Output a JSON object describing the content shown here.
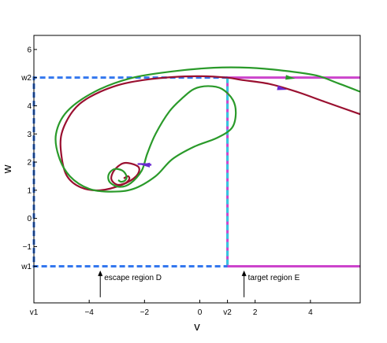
{
  "chart_data": {
    "type": "line",
    "xlabel": "v",
    "ylabel": "w",
    "xlim": [
      -6,
      5.8
    ],
    "ylim": [
      -3,
      6.5
    ],
    "v1": -6,
    "v2": 1,
    "w1": -1.7,
    "w2": 5,
    "x_ticks": [
      {
        "value": -6,
        "label": "v1"
      },
      {
        "value": -4,
        "label": "−4"
      },
      {
        "value": -2,
        "label": "−2"
      },
      {
        "value": 0,
        "label": "0"
      },
      {
        "value": 1,
        "label": "v2"
      },
      {
        "value": 2,
        "label": "2"
      },
      {
        "value": 4,
        "label": "4"
      }
    ],
    "y_ticks": [
      {
        "value": 6,
        "label": "6"
      },
      {
        "value": 5,
        "label": "w2"
      },
      {
        "value": 4,
        "label": "4"
      },
      {
        "value": 3,
        "label": "3"
      },
      {
        "value": 2,
        "label": "2"
      },
      {
        "value": 1,
        "label": "1"
      },
      {
        "value": 0,
        "label": "0"
      },
      {
        "value": -1,
        "label": "−1"
      },
      {
        "value": -1.7,
        "label": "w1"
      }
    ],
    "grid": false,
    "regions": [
      {
        "name": "escape region D",
        "color": "#3377ee",
        "style": "dashed"
      },
      {
        "name": "target region E",
        "color": "#cc44cc",
        "style": "solid"
      }
    ],
    "annotations": [
      {
        "text": "escape region D",
        "arrow_x": -3.6,
        "arrow_y_from": -2.8,
        "arrow_y_to": -1.85
      },
      {
        "text": "target region E",
        "arrow_x": 1.6,
        "arrow_y_from": -2.8,
        "arrow_y_to": -1.85
      }
    ],
    "series": [
      {
        "color": "#9a1030",
        "arrow_at": [
          2.9,
          4.62
        ],
        "x": [
          5.8,
          4.5,
          3.5,
          2.5,
          1.5,
          1.0,
          0.0,
          -1.0,
          -2.0,
          -3.0,
          -4.0,
          -4.6,
          -5.0,
          -5.0,
          -4.8,
          -4.3,
          -3.6,
          -2.8,
          -2.3,
          -2.2,
          -2.5,
          -2.8,
          -3.1,
          -3.2,
          -3.0,
          -2.7,
          -2.55,
          -2.6,
          -2.75
        ],
        "y": [
          3.7,
          4.15,
          4.5,
          4.78,
          4.92,
          5.0,
          5.05,
          5.02,
          4.92,
          4.72,
          4.3,
          3.8,
          3.0,
          2.2,
          1.5,
          1.1,
          1.0,
          1.2,
          1.5,
          1.8,
          1.95,
          1.95,
          1.7,
          1.4,
          1.2,
          1.25,
          1.4,
          1.5,
          1.42
        ]
      },
      {
        "color": "#2a9a2a",
        "arrow_at": [
          3.2,
          5.0
        ],
        "x": [
          5.8,
          5.0,
          4.2,
          3.0,
          1.8,
          0.5,
          -1.0,
          -2.5,
          -3.8,
          -4.8,
          -5.2,
          -5.1,
          -4.7,
          -4.0,
          -3.2,
          -2.4,
          -1.6,
          -1.0,
          -0.2,
          0.6,
          1.15,
          1.3,
          1.2,
          0.8,
          0.3,
          -0.2,
          -0.6,
          -1.1,
          -1.6,
          -1.9,
          -2.1,
          -2.5,
          -2.9,
          -3.25,
          -3.3,
          -3.1,
          -2.8,
          -2.65,
          -2.7,
          -2.85,
          -2.95
        ],
        "y": [
          4.5,
          4.8,
          5.08,
          5.25,
          5.35,
          5.35,
          5.22,
          4.98,
          4.5,
          3.8,
          3.0,
          2.2,
          1.5,
          1.05,
          0.95,
          1.05,
          1.5,
          2.1,
          2.55,
          2.85,
          3.2,
          3.7,
          4.2,
          4.6,
          4.7,
          4.6,
          4.3,
          3.8,
          3.0,
          2.3,
          1.7,
          1.25,
          1.12,
          1.28,
          1.55,
          1.75,
          1.7,
          1.5,
          1.35,
          1.3,
          1.36
        ]
      },
      {
        "color": "#6a2ad0",
        "arrow_at": [
          -1.9,
          1.9
        ],
        "x": [
          -2.25,
          -2.0,
          -1.75
        ],
        "y": [
          1.93,
          1.93,
          1.9
        ]
      }
    ]
  }
}
